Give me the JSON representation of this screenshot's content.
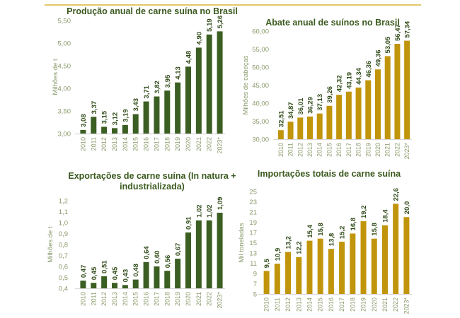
{
  "colors": {
    "green": "#3b5e22",
    "gold": "#c1950b",
    "rule": "#e2c86a"
  },
  "chart_data": [
    {
      "id": "producao",
      "type": "bar",
      "title": [
        "Produção anual de carne suína no Brasil"
      ],
      "xlabel": "",
      "ylabel": "Milhões de t",
      "categories": [
        "2010",
        "2011",
        "2012",
        "2013",
        "2014",
        "2015",
        "2016",
        "2017",
        "2018",
        "2019",
        "2020",
        "2021",
        "2022",
        "2023*"
      ],
      "values": [
        3.08,
        3.37,
        3.15,
        3.12,
        3.19,
        3.43,
        3.71,
        3.82,
        3.95,
        4.13,
        4.48,
        4.9,
        5.19,
        5.26
      ],
      "labels": [
        "3,08",
        "3,37",
        "3,15",
        "3,12",
        "3,19",
        "3,43",
        "3,71",
        "3,82",
        "3,95",
        "4,13",
        "4,48",
        "4,90",
        "5,19",
        "5,26"
      ],
      "yticks": [
        3.0,
        3.5,
        4.0,
        4.5,
        5.0,
        5.5
      ],
      "ytick_labels": [
        "3,00",
        "3,50",
        "4,00",
        "4,50",
        "5,00",
        "5,50"
      ],
      "ylim": [
        3.0,
        5.5
      ],
      "color": "green",
      "grid": false,
      "legend": "none"
    },
    {
      "id": "abate",
      "type": "bar",
      "title": [
        "Abate anual de suínos no Brasil"
      ],
      "xlabel": "",
      "ylabel": "Milhões de cabeças",
      "categories": [
        "2010",
        "2011",
        "2012",
        "2013",
        "2014",
        "2015",
        "2016",
        "2017",
        "2018",
        "2019",
        "2020",
        "2021",
        "2022",
        "2023*"
      ],
      "values": [
        32.51,
        34.87,
        36.01,
        36.29,
        37.13,
        39.26,
        42.32,
        43.19,
        44.34,
        46.36,
        49.36,
        53.05,
        56.47,
        57.34
      ],
      "labels": [
        "32,51",
        "34,87",
        "36,01",
        "36,29",
        "37,13",
        "39,26",
        "42,32",
        "43,19",
        "44,34",
        "46,36",
        "49,36",
        "53,05",
        "56,47",
        "57,34"
      ],
      "yticks": [
        30,
        35,
        40,
        45,
        50,
        55,
        60
      ],
      "ytick_labels": [
        "30,00",
        "35,00",
        "40,00",
        "45,00",
        "50,00",
        "55,00",
        "60,00"
      ],
      "ylim": [
        30,
        60
      ],
      "color": "gold",
      "grid": false,
      "legend": "none"
    },
    {
      "id": "exportacoes",
      "type": "bar",
      "title": [
        "Exportações de carne suína (In natura +",
        "industrializada)"
      ],
      "xlabel": "",
      "ylabel": "Milhões de t",
      "categories": [
        "2010",
        "2011",
        "2012",
        "2013",
        "2014",
        "2015",
        "2016",
        "2017",
        "2018",
        "2019",
        "2020",
        "2021",
        "2022",
        "2023*"
      ],
      "values": [
        0.47,
        0.45,
        0.51,
        0.45,
        0.43,
        0.48,
        0.64,
        0.6,
        0.56,
        0.67,
        0.91,
        1.02,
        1.02,
        1.09
      ],
      "labels": [
        "0,47",
        "0,45",
        "0,51",
        "0,45",
        "0,43",
        "0,48",
        "0,64",
        "0,60",
        "0,56",
        "0,67",
        "0,91",
        "1,02",
        "1,02",
        "1,09"
      ],
      "yticks": [
        0.4,
        0.5,
        0.6,
        0.7,
        0.8,
        0.9,
        1.0,
        1.1,
        1.2
      ],
      "ytick_labels": [
        "0,4",
        "0,5",
        "0,6",
        "0,7",
        "0,8",
        "0,9",
        "1,0",
        "1,1",
        "1,2"
      ],
      "ylim": [
        0.4,
        1.2
      ],
      "color": "green",
      "grid": false,
      "legend": "none"
    },
    {
      "id": "importacoes",
      "type": "bar",
      "title": [
        "Importações totais de carne suína"
      ],
      "xlabel": "",
      "ylabel": "Mil toneladas",
      "categories": [
        "2010",
        "2011",
        "2012",
        "2013",
        "2014",
        "2015",
        "2016",
        "2017",
        "2018",
        "2019",
        "2020",
        "2021",
        "2022",
        "2023*"
      ],
      "values": [
        9.5,
        10.9,
        13.2,
        12.2,
        15.4,
        15.8,
        13.8,
        15.2,
        16.8,
        19.2,
        15.8,
        18.4,
        22.6,
        20.0
      ],
      "labels": [
        "9,5",
        "10,9",
        "13,2",
        "12,2",
        "15,4",
        "15,8",
        "13,8",
        "15,2",
        "16,8",
        "19,2",
        "15,8",
        "18,4",
        "22,6",
        "20,0"
      ],
      "yticks": [
        5,
        7,
        9,
        11,
        13,
        15,
        17,
        19,
        21,
        23,
        25
      ],
      "ytick_labels": [
        "5",
        "7",
        "9",
        "11",
        "13",
        "15",
        "17",
        "19",
        "21",
        "23",
        "25"
      ],
      "ylim": [
        5,
        25
      ],
      "color": "gold",
      "grid": false,
      "legend": "none"
    }
  ]
}
